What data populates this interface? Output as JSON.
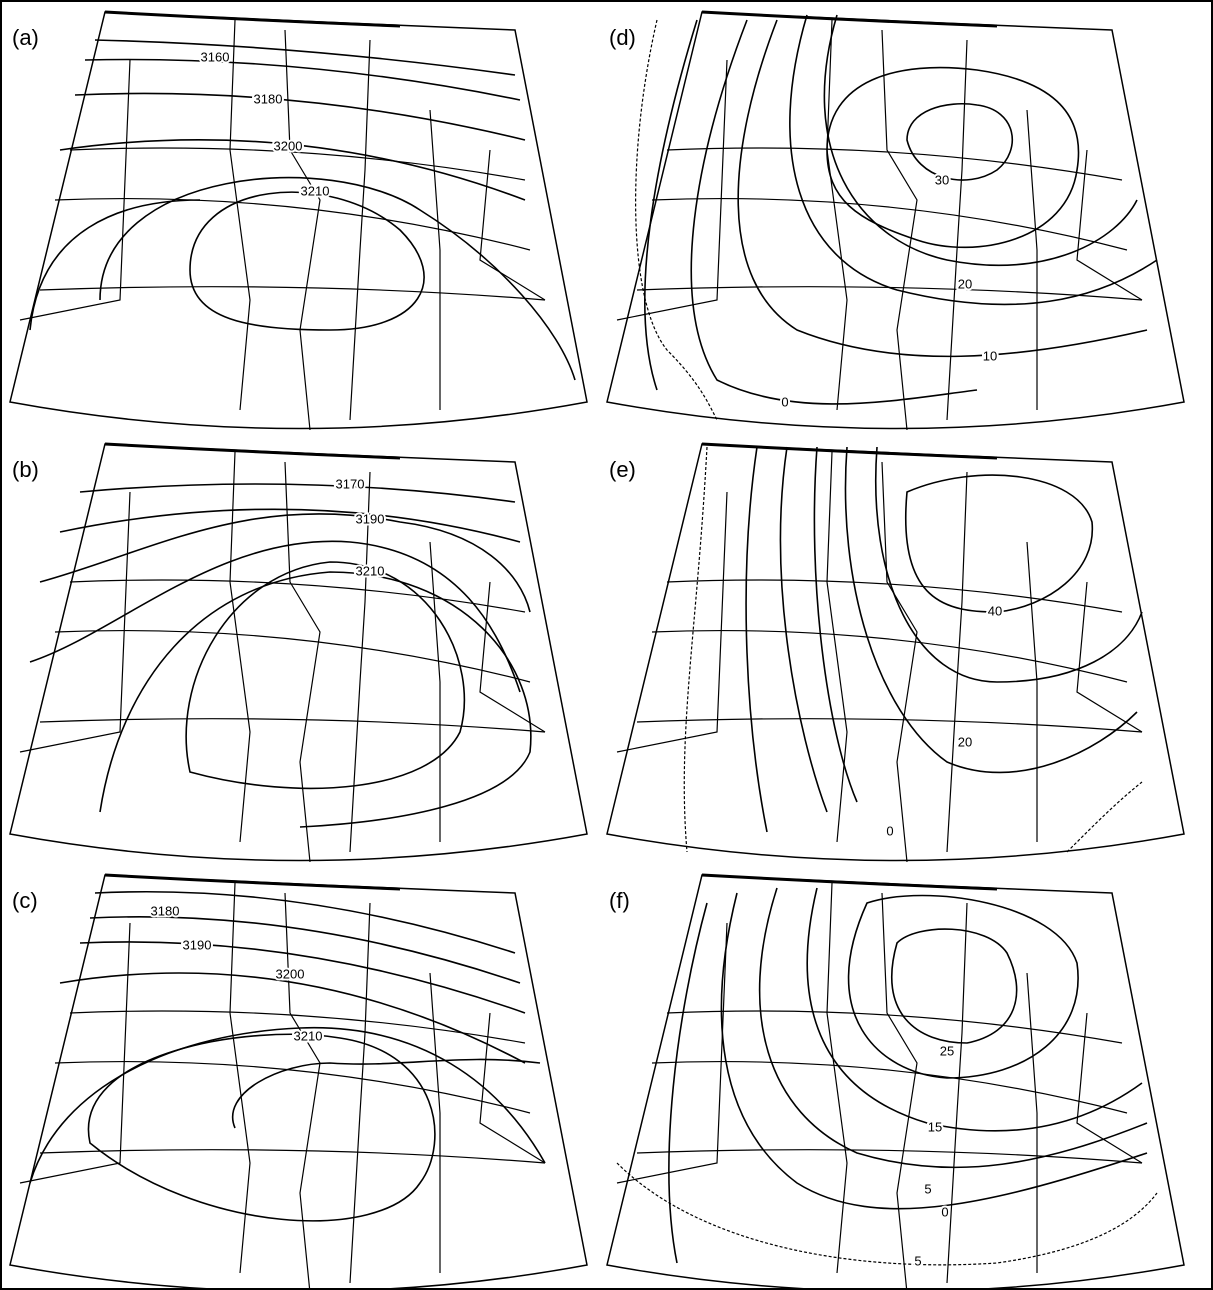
{
  "panels": [
    {
      "label": "(a)",
      "contour_labels": [
        "3160",
        "3180",
        "3200",
        "3210"
      ]
    },
    {
      "label": "(b)",
      "contour_labels": [
        "3170",
        "3190",
        "3210"
      ]
    },
    {
      "label": "(c)",
      "contour_labels": [
        "3180",
        "3190",
        "3200",
        "3210"
      ]
    },
    {
      "label": "(d)",
      "contour_labels": [
        "30",
        "20",
        "10",
        "0"
      ]
    },
    {
      "label": "(e)",
      "contour_labels": [
        "40",
        "20",
        "0"
      ]
    },
    {
      "label": "(f)",
      "contour_labels": [
        "25",
        "15",
        "5",
        "0",
        "5"
      ]
    }
  ]
}
